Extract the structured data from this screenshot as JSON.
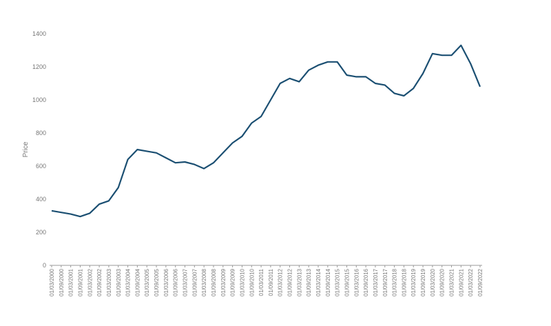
{
  "chart_data": {
    "type": "line",
    "y_label": "Price",
    "categories": [
      "01/03/2000",
      "01/09/2000",
      "01/03/2001",
      "01/09/2001",
      "01/03/2002",
      "01/09/2002",
      "01/03/2003",
      "01/09/2003",
      "01/03/2004",
      "01/09/2004",
      "01/03/2005",
      "01/09/2005",
      "01/03/2006",
      "01/09/2006",
      "01/03/2007",
      "01/09/2007",
      "01/03/2008",
      "01/09/2008",
      "01/03/2009",
      "01/09/2009",
      "01/03/2010",
      "01/09/2010",
      "01/03/2011",
      "01/09/2011",
      "01/03/2012",
      "01/09/2012",
      "01/03/2013",
      "01/09/2013",
      "01/03/2014",
      "01/09/2014",
      "01/03/2015",
      "01/09/2015",
      "01/03/2016",
      "01/09/2016",
      "01/03/2017",
      "01/09/2017",
      "01/03/2018",
      "01/09/2018",
      "01/03/2019",
      "01/09/2019",
      "01/03/2020",
      "01/09/2020",
      "01/03/2021",
      "01/09/2021",
      "01/03/2022",
      "01/09/2022"
    ],
    "values": [
      330,
      320,
      310,
      295,
      315,
      370,
      390,
      470,
      640,
      700,
      690,
      680,
      650,
      620,
      625,
      610,
      585,
      620,
      680,
      740,
      780,
      860,
      900,
      1000,
      1100,
      1130,
      1110,
      1180,
      1210,
      1230,
      1230,
      1150,
      1140,
      1140,
      1100,
      1090,
      1040,
      1025,
      1070,
      1160,
      1280,
      1270,
      1270,
      1330,
      1220,
      1080
    ],
    "color": "#1b4f72",
    "ylim": [
      0,
      1400
    ],
    "yticks": [
      0,
      200,
      400,
      600,
      800,
      1000,
      1200,
      1400
    ],
    "grid": false
  }
}
